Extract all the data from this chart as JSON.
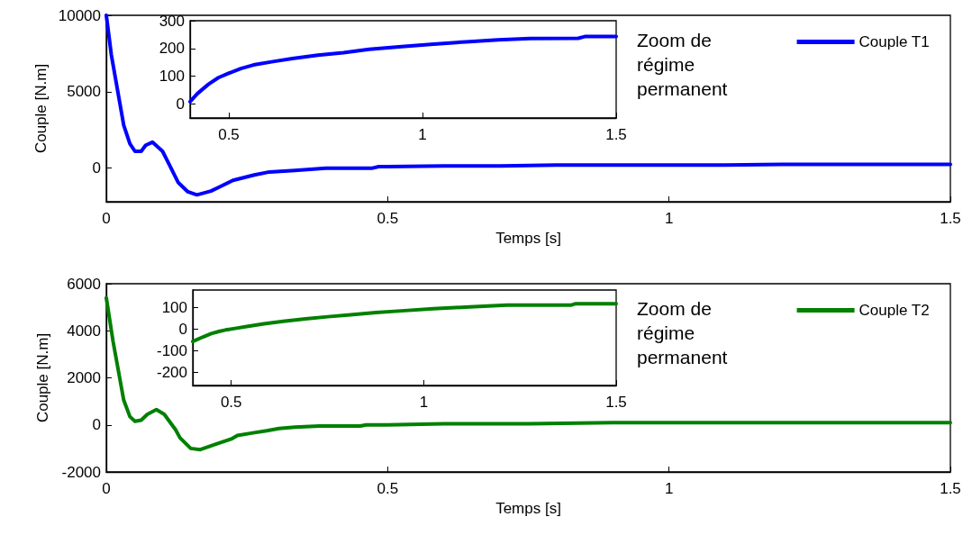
{
  "chart_data": [
    {
      "type": "line",
      "xlabel": "Temps [s]",
      "ylabel": "Couple [N.m]",
      "xlim": [
        0,
        1.5
      ],
      "ylim": [
        -2200,
        10000
      ],
      "xticks": [
        0,
        0.5,
        1,
        1.5
      ],
      "yticks": [
        0,
        5000,
        10000
      ],
      "grid": false,
      "legend": "top right",
      "marker": "none",
      "line_style": "solid",
      "annotations": [
        "Zoom de régime permanent"
      ],
      "series": [
        {
          "name": "Couple T1",
          "color": "#0000ff",
          "x": [
            0,
            0.009,
            0.031,
            0.042,
            0.051,
            0.062,
            0.07,
            0.082,
            0.1,
            0.111,
            0.128,
            0.145,
            0.161,
            0.186,
            0.203,
            0.225,
            0.263,
            0.29,
            0.335,
            0.39,
            0.473,
            0.484,
            0.5,
            0.6,
            0.7,
            0.8,
            0.9,
            1.0,
            1.1,
            1.2,
            1.3,
            1.4,
            1.5
          ],
          "values": [
            10000,
            7400,
            2800,
            1600,
            1100,
            1100,
            1500,
            1700,
            1100,
            300,
            -950,
            -1550,
            -1750,
            -1500,
            -1200,
            -800,
            -450,
            -250,
            -150,
            0,
            0,
            100,
            100,
            150,
            150,
            200,
            200,
            200,
            200,
            250,
            250,
            250,
            250
          ]
        }
      ]
    },
    {
      "type": "line",
      "xlim": [
        0.4,
        1.5
      ],
      "ylim": [
        -50,
        300
      ],
      "xticks": [
        0.5,
        1,
        1.5
      ],
      "yticks": [
        0,
        100,
        200,
        300
      ],
      "grid": false,
      "legend": false,
      "marker": "none",
      "line_style": "solid",
      "series": [
        {
          "color": "#0000ff",
          "x": [
            0.4,
            0.419,
            0.448,
            0.473,
            0.498,
            0.531,
            0.564,
            0.614,
            0.664,
            0.73,
            0.796,
            0.862,
            0.946,
            1.029,
            1.112,
            1.195,
            1.278,
            1.402,
            1.419,
            1.5
          ],
          "values": [
            9,
            38,
            72,
            95,
            110,
            128,
            141,
            153,
            164,
            176,
            185,
            197,
            207,
            216,
            224,
            231,
            236,
            237,
            243,
            243
          ]
        }
      ]
    },
    {
      "type": "line",
      "xlabel": "Temps [s]",
      "ylabel": "Couple [N.m]",
      "xlim": [
        0,
        1.5
      ],
      "ylim": [
        -2000,
        6000
      ],
      "xticks": [
        0,
        0.5,
        1,
        1.5
      ],
      "yticks": [
        -2000,
        0,
        2000,
        4000,
        6000
      ],
      "grid": false,
      "legend": "top right",
      "marker": "none",
      "line_style": "solid",
      "annotations": [
        "Zoom de régime permanent"
      ],
      "series": [
        {
          "name": "Couple T2",
          "color": "#008000",
          "x": [
            0,
            0.012,
            0.031,
            0.042,
            0.051,
            0.062,
            0.073,
            0.089,
            0.103,
            0.123,
            0.131,
            0.15,
            0.167,
            0.197,
            0.222,
            0.233,
            0.258,
            0.285,
            0.307,
            0.335,
            0.379,
            0.451,
            0.462,
            0.5,
            0.6,
            0.75,
            0.9,
            1.1,
            1.3,
            1.5
          ],
          "values": [
            5400,
            3550,
            1050,
            350,
            150,
            200,
            450,
            650,
            450,
            -200,
            -550,
            -1000,
            -1050,
            -800,
            -600,
            -450,
            -350,
            -250,
            -150,
            -100,
            -50,
            -50,
            0,
            0,
            50,
            50,
            100,
            100,
            100,
            100
          ]
        }
      ]
    },
    {
      "type": "line",
      "xlim": [
        0.4,
        1.5
      ],
      "ylim": [
        -260,
        180
      ],
      "xticks": [
        0.5,
        1,
        1.5
      ],
      "yticks": [
        -200,
        -100,
        0,
        100
      ],
      "grid": false,
      "legend": false,
      "marker": "none",
      "line_style": "solid",
      "series": [
        {
          "color": "#008000",
          "x": [
            0.4,
            0.427,
            0.448,
            0.468,
            0.485,
            0.51,
            0.544,
            0.585,
            0.635,
            0.693,
            0.751,
            0.81,
            0.876,
            0.942,
            1.025,
            1.108,
            1.216,
            1.382,
            1.395,
            1.5
          ],
          "values": [
            -57,
            -36,
            -21,
            -11,
            -4,
            3,
            13,
            24,
            36,
            47,
            57,
            66,
            76,
            84,
            94,
            101,
            110,
            110,
            117,
            117
          ]
        }
      ]
    }
  ]
}
